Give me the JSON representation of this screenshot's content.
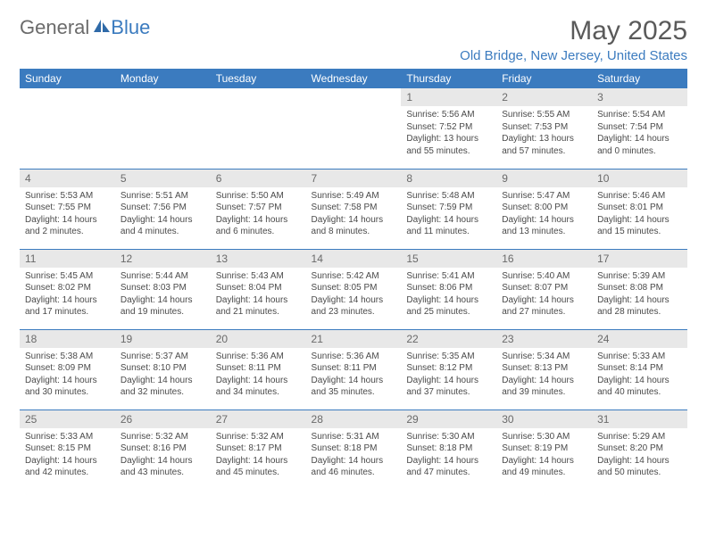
{
  "brand": {
    "text1": "General",
    "text2": "Blue",
    "color_gray": "#6b6b6b",
    "color_blue": "#3b7bbf"
  },
  "title": "May 2025",
  "location": "Old Bridge, New Jersey, United States",
  "colors": {
    "header_bg": "#3b7bbf",
    "header_fg": "#ffffff",
    "daynum_bg": "#e8e8e8",
    "daynum_fg": "#6a6a6a",
    "rule": "#3b7bbf",
    "text": "#4a4a4a"
  },
  "weekdays": [
    "Sunday",
    "Monday",
    "Tuesday",
    "Wednesday",
    "Thursday",
    "Friday",
    "Saturday"
  ],
  "weeks": [
    [
      null,
      null,
      null,
      null,
      {
        "n": "1",
        "sr": "Sunrise: 5:56 AM",
        "ss": "Sunset: 7:52 PM",
        "dl": "Daylight: 13 hours and 55 minutes."
      },
      {
        "n": "2",
        "sr": "Sunrise: 5:55 AM",
        "ss": "Sunset: 7:53 PM",
        "dl": "Daylight: 13 hours and 57 minutes."
      },
      {
        "n": "3",
        "sr": "Sunrise: 5:54 AM",
        "ss": "Sunset: 7:54 PM",
        "dl": "Daylight: 14 hours and 0 minutes."
      }
    ],
    [
      {
        "n": "4",
        "sr": "Sunrise: 5:53 AM",
        "ss": "Sunset: 7:55 PM",
        "dl": "Daylight: 14 hours and 2 minutes."
      },
      {
        "n": "5",
        "sr": "Sunrise: 5:51 AM",
        "ss": "Sunset: 7:56 PM",
        "dl": "Daylight: 14 hours and 4 minutes."
      },
      {
        "n": "6",
        "sr": "Sunrise: 5:50 AM",
        "ss": "Sunset: 7:57 PM",
        "dl": "Daylight: 14 hours and 6 minutes."
      },
      {
        "n": "7",
        "sr": "Sunrise: 5:49 AM",
        "ss": "Sunset: 7:58 PM",
        "dl": "Daylight: 14 hours and 8 minutes."
      },
      {
        "n": "8",
        "sr": "Sunrise: 5:48 AM",
        "ss": "Sunset: 7:59 PM",
        "dl": "Daylight: 14 hours and 11 minutes."
      },
      {
        "n": "9",
        "sr": "Sunrise: 5:47 AM",
        "ss": "Sunset: 8:00 PM",
        "dl": "Daylight: 14 hours and 13 minutes."
      },
      {
        "n": "10",
        "sr": "Sunrise: 5:46 AM",
        "ss": "Sunset: 8:01 PM",
        "dl": "Daylight: 14 hours and 15 minutes."
      }
    ],
    [
      {
        "n": "11",
        "sr": "Sunrise: 5:45 AM",
        "ss": "Sunset: 8:02 PM",
        "dl": "Daylight: 14 hours and 17 minutes."
      },
      {
        "n": "12",
        "sr": "Sunrise: 5:44 AM",
        "ss": "Sunset: 8:03 PM",
        "dl": "Daylight: 14 hours and 19 minutes."
      },
      {
        "n": "13",
        "sr": "Sunrise: 5:43 AM",
        "ss": "Sunset: 8:04 PM",
        "dl": "Daylight: 14 hours and 21 minutes."
      },
      {
        "n": "14",
        "sr": "Sunrise: 5:42 AM",
        "ss": "Sunset: 8:05 PM",
        "dl": "Daylight: 14 hours and 23 minutes."
      },
      {
        "n": "15",
        "sr": "Sunrise: 5:41 AM",
        "ss": "Sunset: 8:06 PM",
        "dl": "Daylight: 14 hours and 25 minutes."
      },
      {
        "n": "16",
        "sr": "Sunrise: 5:40 AM",
        "ss": "Sunset: 8:07 PM",
        "dl": "Daylight: 14 hours and 27 minutes."
      },
      {
        "n": "17",
        "sr": "Sunrise: 5:39 AM",
        "ss": "Sunset: 8:08 PM",
        "dl": "Daylight: 14 hours and 28 minutes."
      }
    ],
    [
      {
        "n": "18",
        "sr": "Sunrise: 5:38 AM",
        "ss": "Sunset: 8:09 PM",
        "dl": "Daylight: 14 hours and 30 minutes."
      },
      {
        "n": "19",
        "sr": "Sunrise: 5:37 AM",
        "ss": "Sunset: 8:10 PM",
        "dl": "Daylight: 14 hours and 32 minutes."
      },
      {
        "n": "20",
        "sr": "Sunrise: 5:36 AM",
        "ss": "Sunset: 8:11 PM",
        "dl": "Daylight: 14 hours and 34 minutes."
      },
      {
        "n": "21",
        "sr": "Sunrise: 5:36 AM",
        "ss": "Sunset: 8:11 PM",
        "dl": "Daylight: 14 hours and 35 minutes."
      },
      {
        "n": "22",
        "sr": "Sunrise: 5:35 AM",
        "ss": "Sunset: 8:12 PM",
        "dl": "Daylight: 14 hours and 37 minutes."
      },
      {
        "n": "23",
        "sr": "Sunrise: 5:34 AM",
        "ss": "Sunset: 8:13 PM",
        "dl": "Daylight: 14 hours and 39 minutes."
      },
      {
        "n": "24",
        "sr": "Sunrise: 5:33 AM",
        "ss": "Sunset: 8:14 PM",
        "dl": "Daylight: 14 hours and 40 minutes."
      }
    ],
    [
      {
        "n": "25",
        "sr": "Sunrise: 5:33 AM",
        "ss": "Sunset: 8:15 PM",
        "dl": "Daylight: 14 hours and 42 minutes."
      },
      {
        "n": "26",
        "sr": "Sunrise: 5:32 AM",
        "ss": "Sunset: 8:16 PM",
        "dl": "Daylight: 14 hours and 43 minutes."
      },
      {
        "n": "27",
        "sr": "Sunrise: 5:32 AM",
        "ss": "Sunset: 8:17 PM",
        "dl": "Daylight: 14 hours and 45 minutes."
      },
      {
        "n": "28",
        "sr": "Sunrise: 5:31 AM",
        "ss": "Sunset: 8:18 PM",
        "dl": "Daylight: 14 hours and 46 minutes."
      },
      {
        "n": "29",
        "sr": "Sunrise: 5:30 AM",
        "ss": "Sunset: 8:18 PM",
        "dl": "Daylight: 14 hours and 47 minutes."
      },
      {
        "n": "30",
        "sr": "Sunrise: 5:30 AM",
        "ss": "Sunset: 8:19 PM",
        "dl": "Daylight: 14 hours and 49 minutes."
      },
      {
        "n": "31",
        "sr": "Sunrise: 5:29 AM",
        "ss": "Sunset: 8:20 PM",
        "dl": "Daylight: 14 hours and 50 minutes."
      }
    ]
  ]
}
